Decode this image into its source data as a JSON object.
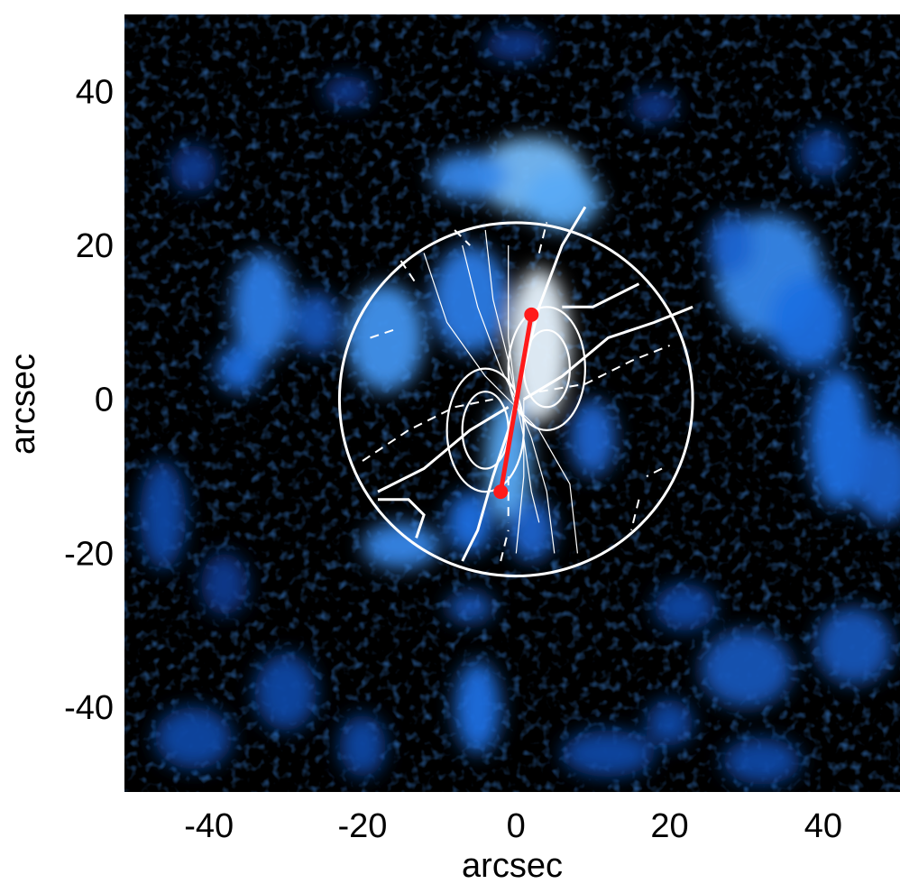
{
  "chart_data": {
    "type": "heatmap",
    "xlabel": "arcsec",
    "ylabel": "arcsec",
    "xlim": [
      -51,
      50
    ],
    "ylim": [
      -51,
      50
    ],
    "xticks": [
      -40,
      -20,
      0,
      20,
      40
    ],
    "yticks": [
      40,
      20,
      0,
      -20,
      -40
    ],
    "colormap": [
      "#000000",
      "#0a2c7a",
      "#1f6fe0",
      "#58aaf5",
      "#e8f4ff"
    ],
    "emission_patches": [
      {
        "x": 2,
        "y": 29,
        "rx": 7,
        "ry": 5,
        "intensity": 0.8
      },
      {
        "x": 6,
        "y": 26,
        "rx": 5,
        "ry": 4,
        "intensity": 0.75
      },
      {
        "x": -6,
        "y": 29,
        "rx": 5,
        "ry": 3,
        "intensity": 0.6
      },
      {
        "x": 3,
        "y": 7,
        "rx": 4,
        "ry": 10,
        "intensity": 1.0
      },
      {
        "x": -1,
        "y": -8,
        "rx": 3,
        "ry": 8,
        "intensity": 0.75
      },
      {
        "x": -6,
        "y": 13,
        "rx": 5,
        "ry": 7,
        "intensity": 0.55
      },
      {
        "x": -17,
        "y": 8,
        "rx": 5,
        "ry": 7,
        "intensity": 0.65
      },
      {
        "x": -33,
        "y": 12,
        "rx": 4,
        "ry": 7,
        "intensity": 0.55
      },
      {
        "x": -36,
        "y": 4,
        "rx": 3,
        "ry": 3,
        "intensity": 0.5
      },
      {
        "x": -26,
        "y": 10,
        "rx": 3,
        "ry": 4,
        "intensity": 0.4
      },
      {
        "x": 10,
        "y": -5,
        "rx": 3,
        "ry": 5,
        "intensity": 0.45
      },
      {
        "x": -15,
        "y": -19,
        "rx": 5,
        "ry": 3,
        "intensity": 0.6
      },
      {
        "x": -6,
        "y": -16,
        "rx": 3,
        "ry": 4,
        "intensity": 0.5
      },
      {
        "x": 2,
        "y": -17,
        "rx": 3,
        "ry": 4,
        "intensity": 0.45
      },
      {
        "x": -6,
        "y": -27,
        "rx": 3,
        "ry": 2,
        "intensity": 0.4
      },
      {
        "x": 33,
        "y": 16,
        "rx": 7,
        "ry": 8,
        "intensity": 0.6
      },
      {
        "x": 38,
        "y": 10,
        "rx": 5,
        "ry": 6,
        "intensity": 0.5
      },
      {
        "x": 42,
        "y": -5,
        "rx": 4,
        "ry": 9,
        "intensity": 0.5
      },
      {
        "x": 48,
        "y": -10,
        "rx": 4,
        "ry": 6,
        "intensity": 0.45
      },
      {
        "x": 28,
        "y": 20,
        "rx": 3,
        "ry": 4,
        "intensity": 0.45
      },
      {
        "x": 44,
        "y": -32,
        "rx": 5,
        "ry": 5,
        "intensity": 0.4
      },
      {
        "x": 30,
        "y": -35,
        "rx": 6,
        "ry": 5,
        "intensity": 0.4
      },
      {
        "x": 22,
        "y": -27,
        "rx": 4,
        "ry": 3,
        "intensity": 0.35
      },
      {
        "x": 20,
        "y": -42,
        "rx": 3,
        "ry": 3,
        "intensity": 0.35
      },
      {
        "x": -5,
        "y": -40,
        "rx": 3,
        "ry": 6,
        "intensity": 0.5
      },
      {
        "x": -20,
        "y": -45,
        "rx": 3,
        "ry": 4,
        "intensity": 0.35
      },
      {
        "x": -30,
        "y": -38,
        "rx": 4,
        "ry": 5,
        "intensity": 0.35
      },
      {
        "x": -42,
        "y": -44,
        "rx": 5,
        "ry": 4,
        "intensity": 0.35
      },
      {
        "x": -46,
        "y": -15,
        "rx": 3,
        "ry": 7,
        "intensity": 0.35
      },
      {
        "x": -38,
        "y": -24,
        "rx": 3,
        "ry": 4,
        "intensity": 0.3
      },
      {
        "x": 12,
        "y": -46,
        "rx": 6,
        "ry": 3,
        "intensity": 0.35
      },
      {
        "x": 32,
        "y": -47,
        "rx": 5,
        "ry": 3,
        "intensity": 0.35
      },
      {
        "x": 40,
        "y": 32,
        "rx": 3,
        "ry": 3,
        "intensity": 0.35
      },
      {
        "x": 18,
        "y": 38,
        "rx": 3,
        "ry": 2,
        "intensity": 0.3
      },
      {
        "x": 0,
        "y": 46,
        "rx": 4,
        "ry": 2,
        "intensity": 0.3
      },
      {
        "x": -22,
        "y": 40,
        "rx": 3,
        "ry": 2,
        "intensity": 0.3
      },
      {
        "x": -42,
        "y": 30,
        "rx": 3,
        "ry": 3,
        "intensity": 0.3
      }
    ],
    "circle": {
      "center": [
        0,
        0
      ],
      "radius": 23
    },
    "red_segment": {
      "start": [
        2,
        11
      ],
      "end": [
        -2,
        -12
      ]
    },
    "contours": {
      "positive_major": [
        [
          [
            -18,
            -12
          ],
          [
            -12,
            -9
          ],
          [
            -6,
            -4
          ],
          [
            -1,
            -1
          ]
        ],
        [
          [
            6,
            12
          ],
          [
            10,
            12
          ],
          [
            16,
            15
          ]
        ],
        [
          [
            -13,
            -18
          ],
          [
            -12,
            -15
          ],
          [
            -14,
            -13
          ],
          [
            -18,
            -13
          ]
        ],
        [
          [
            -7,
            -21
          ],
          [
            -5,
            -17
          ],
          [
            -3,
            -10
          ],
          [
            -1,
            -4
          ],
          [
            0,
            0
          ],
          [
            1,
            4
          ],
          [
            3,
            12
          ],
          [
            6,
            20
          ],
          [
            9,
            25
          ]
        ],
        [
          [
            1,
            0
          ],
          [
            6,
            3
          ],
          [
            12,
            8
          ],
          [
            18,
            10
          ],
          [
            23,
            12
          ]
        ]
      ],
      "negative_dashed": [
        [
          [
            -20,
            -8
          ],
          [
            -14,
            -4
          ],
          [
            -8,
            -1
          ],
          [
            -3,
            0
          ]
        ],
        [
          [
            3,
            1
          ],
          [
            9,
            2
          ],
          [
            15,
            5
          ],
          [
            20,
            7
          ]
        ],
        [
          [
            -2,
            -21
          ],
          [
            -1,
            -17
          ]
        ],
        [
          [
            -1,
            -10
          ],
          [
            -1,
            -16
          ]
        ],
        [
          [
            3,
            19
          ],
          [
            4,
            23
          ]
        ],
        [
          [
            -19,
            8
          ],
          [
            -16,
            9
          ]
        ],
        [
          [
            16,
            -13
          ],
          [
            15,
            -17
          ]
        ],
        [
          [
            19,
            -9
          ],
          [
            17,
            -10
          ]
        ],
        [
          [
            -8,
            22
          ],
          [
            -6,
            20
          ]
        ],
        [
          [
            -15,
            18
          ],
          [
            -13,
            15
          ]
        ]
      ],
      "thin_field": [
        [
          [
            -12,
            19
          ],
          [
            -9,
            10
          ],
          [
            -4,
            3
          ],
          [
            -1,
            0
          ],
          [
            3,
            -4
          ],
          [
            7,
            -11
          ],
          [
            8,
            -20
          ]
        ],
        [
          [
            -7,
            20
          ],
          [
            -5,
            12
          ],
          [
            -2,
            4
          ],
          [
            0,
            0
          ],
          [
            2,
            -5
          ],
          [
            4,
            -12
          ],
          [
            5,
            -20
          ]
        ],
        [
          [
            -4,
            22
          ],
          [
            -3,
            13
          ],
          [
            -1,
            5
          ],
          [
            0,
            0
          ],
          [
            1,
            -5
          ],
          [
            2,
            -12
          ],
          [
            3,
            -16
          ]
        ],
        [
          [
            -1,
            20
          ],
          [
            -1,
            8
          ],
          [
            0,
            0
          ]
        ],
        [
          [
            1,
            0
          ],
          [
            1,
            -10
          ],
          [
            0,
            -20
          ]
        ]
      ],
      "lobes": [
        {
          "cx": 4,
          "cy": 4,
          "rx": 3,
          "ry": 5
        },
        {
          "cx": -4,
          "cy": -4,
          "rx": 3,
          "ry": 5
        },
        {
          "cx": 4,
          "cy": 4,
          "rx": 5,
          "ry": 8
        },
        {
          "cx": -4,
          "cy": -4,
          "rx": 5,
          "ry": 8
        }
      ]
    }
  }
}
